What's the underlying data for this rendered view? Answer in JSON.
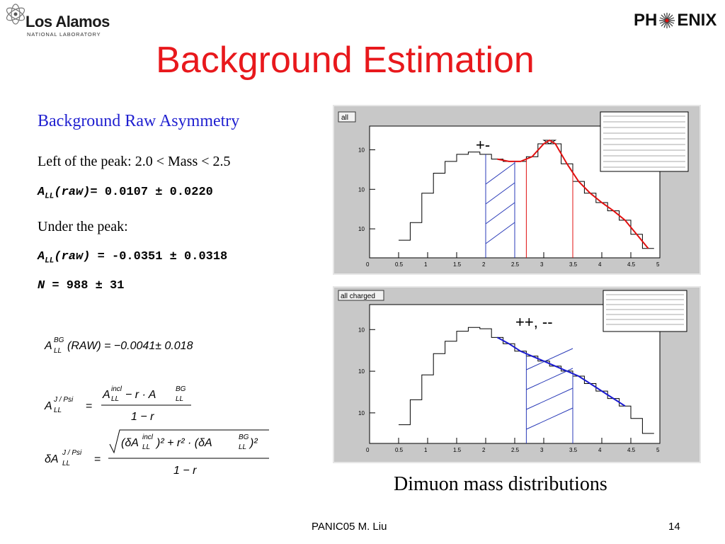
{
  "logos": {
    "lanl_name": "Los Alamos",
    "lanl_sub": "NATIONAL LABORATORY",
    "phenix_left": "PH",
    "phenix_right": "ENIX"
  },
  "title": "Background Estimation",
  "left": {
    "heading": "Background Raw Asymmetry",
    "left_peak": "Left of the peak: 2.0 < Mass < 2.5",
    "all_result_label": "(raw)=",
    "all_result_value": " 0.0107 ± 0.0220",
    "under_peak": "Under the peak:",
    "under_result_label": "(raw) =",
    "under_result_value": " -0.0351 ± 0.0318",
    "n_label": "N",
    "n_value": " = 988 ± 31",
    "a_symbol": "A",
    "a_sub": "LL"
  },
  "equations": {
    "eq1": "(RAW) = −0.0041± 0.018",
    "eq1_sup": "BG",
    "eq1_sub": "LL",
    "eq2_sup": "J / Psi",
    "eq2_sub": "LL",
    "eq2_num": "A",
    "eq2_num_sup": "incl",
    "eq2_mid": " − r · A",
    "eq2_bg": "BG",
    "eq2_den": "1 − r",
    "eq3_den": "1 − r",
    "eq3_num": "(δA",
    "eq3_incl": "incl",
    "eq3_mid": ")² + r² · (δA",
    "eq3_bg": "BG",
    "eq3_end": ")²",
    "eq3_lhs": "δA",
    "delta": "δ"
  },
  "plots": {
    "top_tab": "all",
    "top_annotation": "+-",
    "bottom_tab": "all charged",
    "bottom_annotation": "++, --",
    "x_ticks": [
      "0",
      "0.5",
      "1",
      "1.5",
      "2",
      "2.5",
      "3",
      "3.5",
      "4",
      "4.5",
      "5"
    ],
    "y_ticks_top": [
      "10",
      "10",
      "10"
    ],
    "y_ticks_bottom": [
      "10",
      "10",
      "10"
    ]
  },
  "chart_data": [
    {
      "type": "line",
      "x": [
        0.6,
        0.8,
        1.0,
        1.2,
        1.4,
        1.6,
        1.8,
        2.0,
        2.2,
        2.4,
        2.6,
        2.8,
        3.0,
        3.1,
        3.2,
        3.4,
        3.6,
        3.8,
        4.0,
        4.2,
        4.4,
        4.6,
        4.8
      ],
      "y_rel": [
        0.15,
        0.3,
        0.55,
        0.72,
        0.82,
        0.88,
        0.9,
        0.88,
        0.84,
        0.82,
        0.82,
        0.86,
        0.97,
        1.0,
        0.97,
        0.8,
        0.65,
        0.55,
        0.47,
        0.4,
        0.32,
        0.2,
        0.08
      ],
      "xlim": [
        0,
        5
      ],
      "shaded_region": [
        2.0,
        2.5
      ],
      "peak_region": [
        2.7,
        3.5
      ],
      "annotation": "+-",
      "colors": {
        "histogram": "#000000",
        "fit": "#e01010",
        "region": "#2a3bb8",
        "peak": "#e01010"
      }
    },
    {
      "type": "line",
      "x": [
        0.6,
        0.8,
        1.0,
        1.2,
        1.4,
        1.6,
        1.8,
        2.0,
        2.2,
        2.4,
        2.6,
        2.8,
        3.0,
        3.2,
        3.4,
        3.6,
        3.8,
        4.0,
        4.2,
        4.4,
        4.6,
        4.8
      ],
      "y_rel": [
        0.15,
        0.35,
        0.55,
        0.72,
        0.82,
        0.9,
        0.93,
        0.92,
        0.85,
        0.8,
        0.74,
        0.7,
        0.66,
        0.62,
        0.58,
        0.54,
        0.48,
        0.42,
        0.36,
        0.3,
        0.2,
        0.08
      ],
      "xlim": [
        0,
        5
      ],
      "shaded_region": [
        2.7,
        3.5
      ],
      "annotation": "++, --",
      "colors": {
        "histogram": "#000000",
        "fit": "#1a1ad0",
        "region": "#2a3bb8"
      }
    }
  ]
}
